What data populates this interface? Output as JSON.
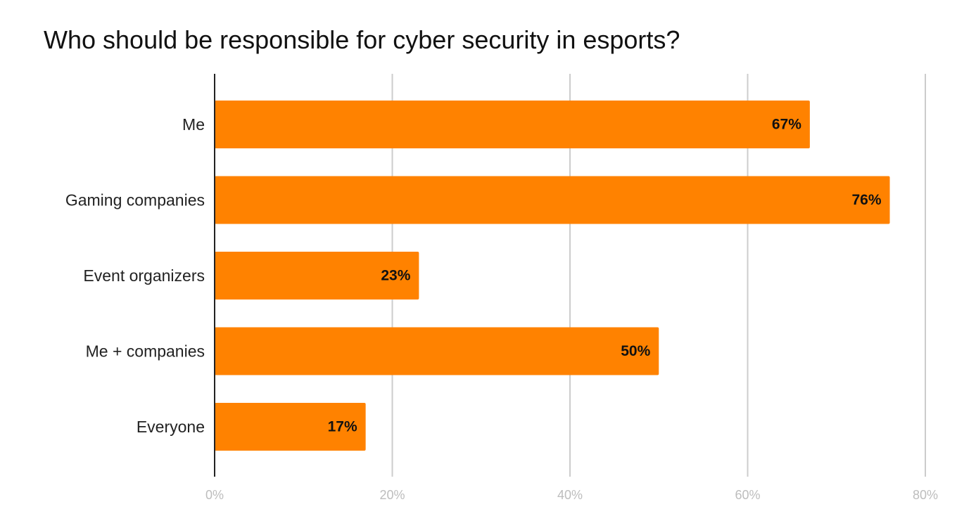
{
  "chart_data": {
    "type": "bar",
    "orientation": "horizontal",
    "title": "Who should be responsible for cyber security in esports?",
    "categories": [
      "Me",
      "Gaming companies",
      "Event organizers",
      "Me + companies",
      "Everyone"
    ],
    "values": [
      67,
      76,
      23,
      50,
      17
    ],
    "data_labels": [
      "67%",
      "76%",
      "23%",
      "50%",
      "17%"
    ],
    "x_ticks": [
      0,
      20,
      40,
      60,
      80
    ],
    "x_tick_labels": [
      "0%",
      "20%",
      "40%",
      "60%",
      "80%"
    ],
    "xlim": [
      0,
      80
    ],
    "xlabel": "",
    "ylabel": "",
    "grid": true,
    "bar_color": "#ff8200"
  }
}
